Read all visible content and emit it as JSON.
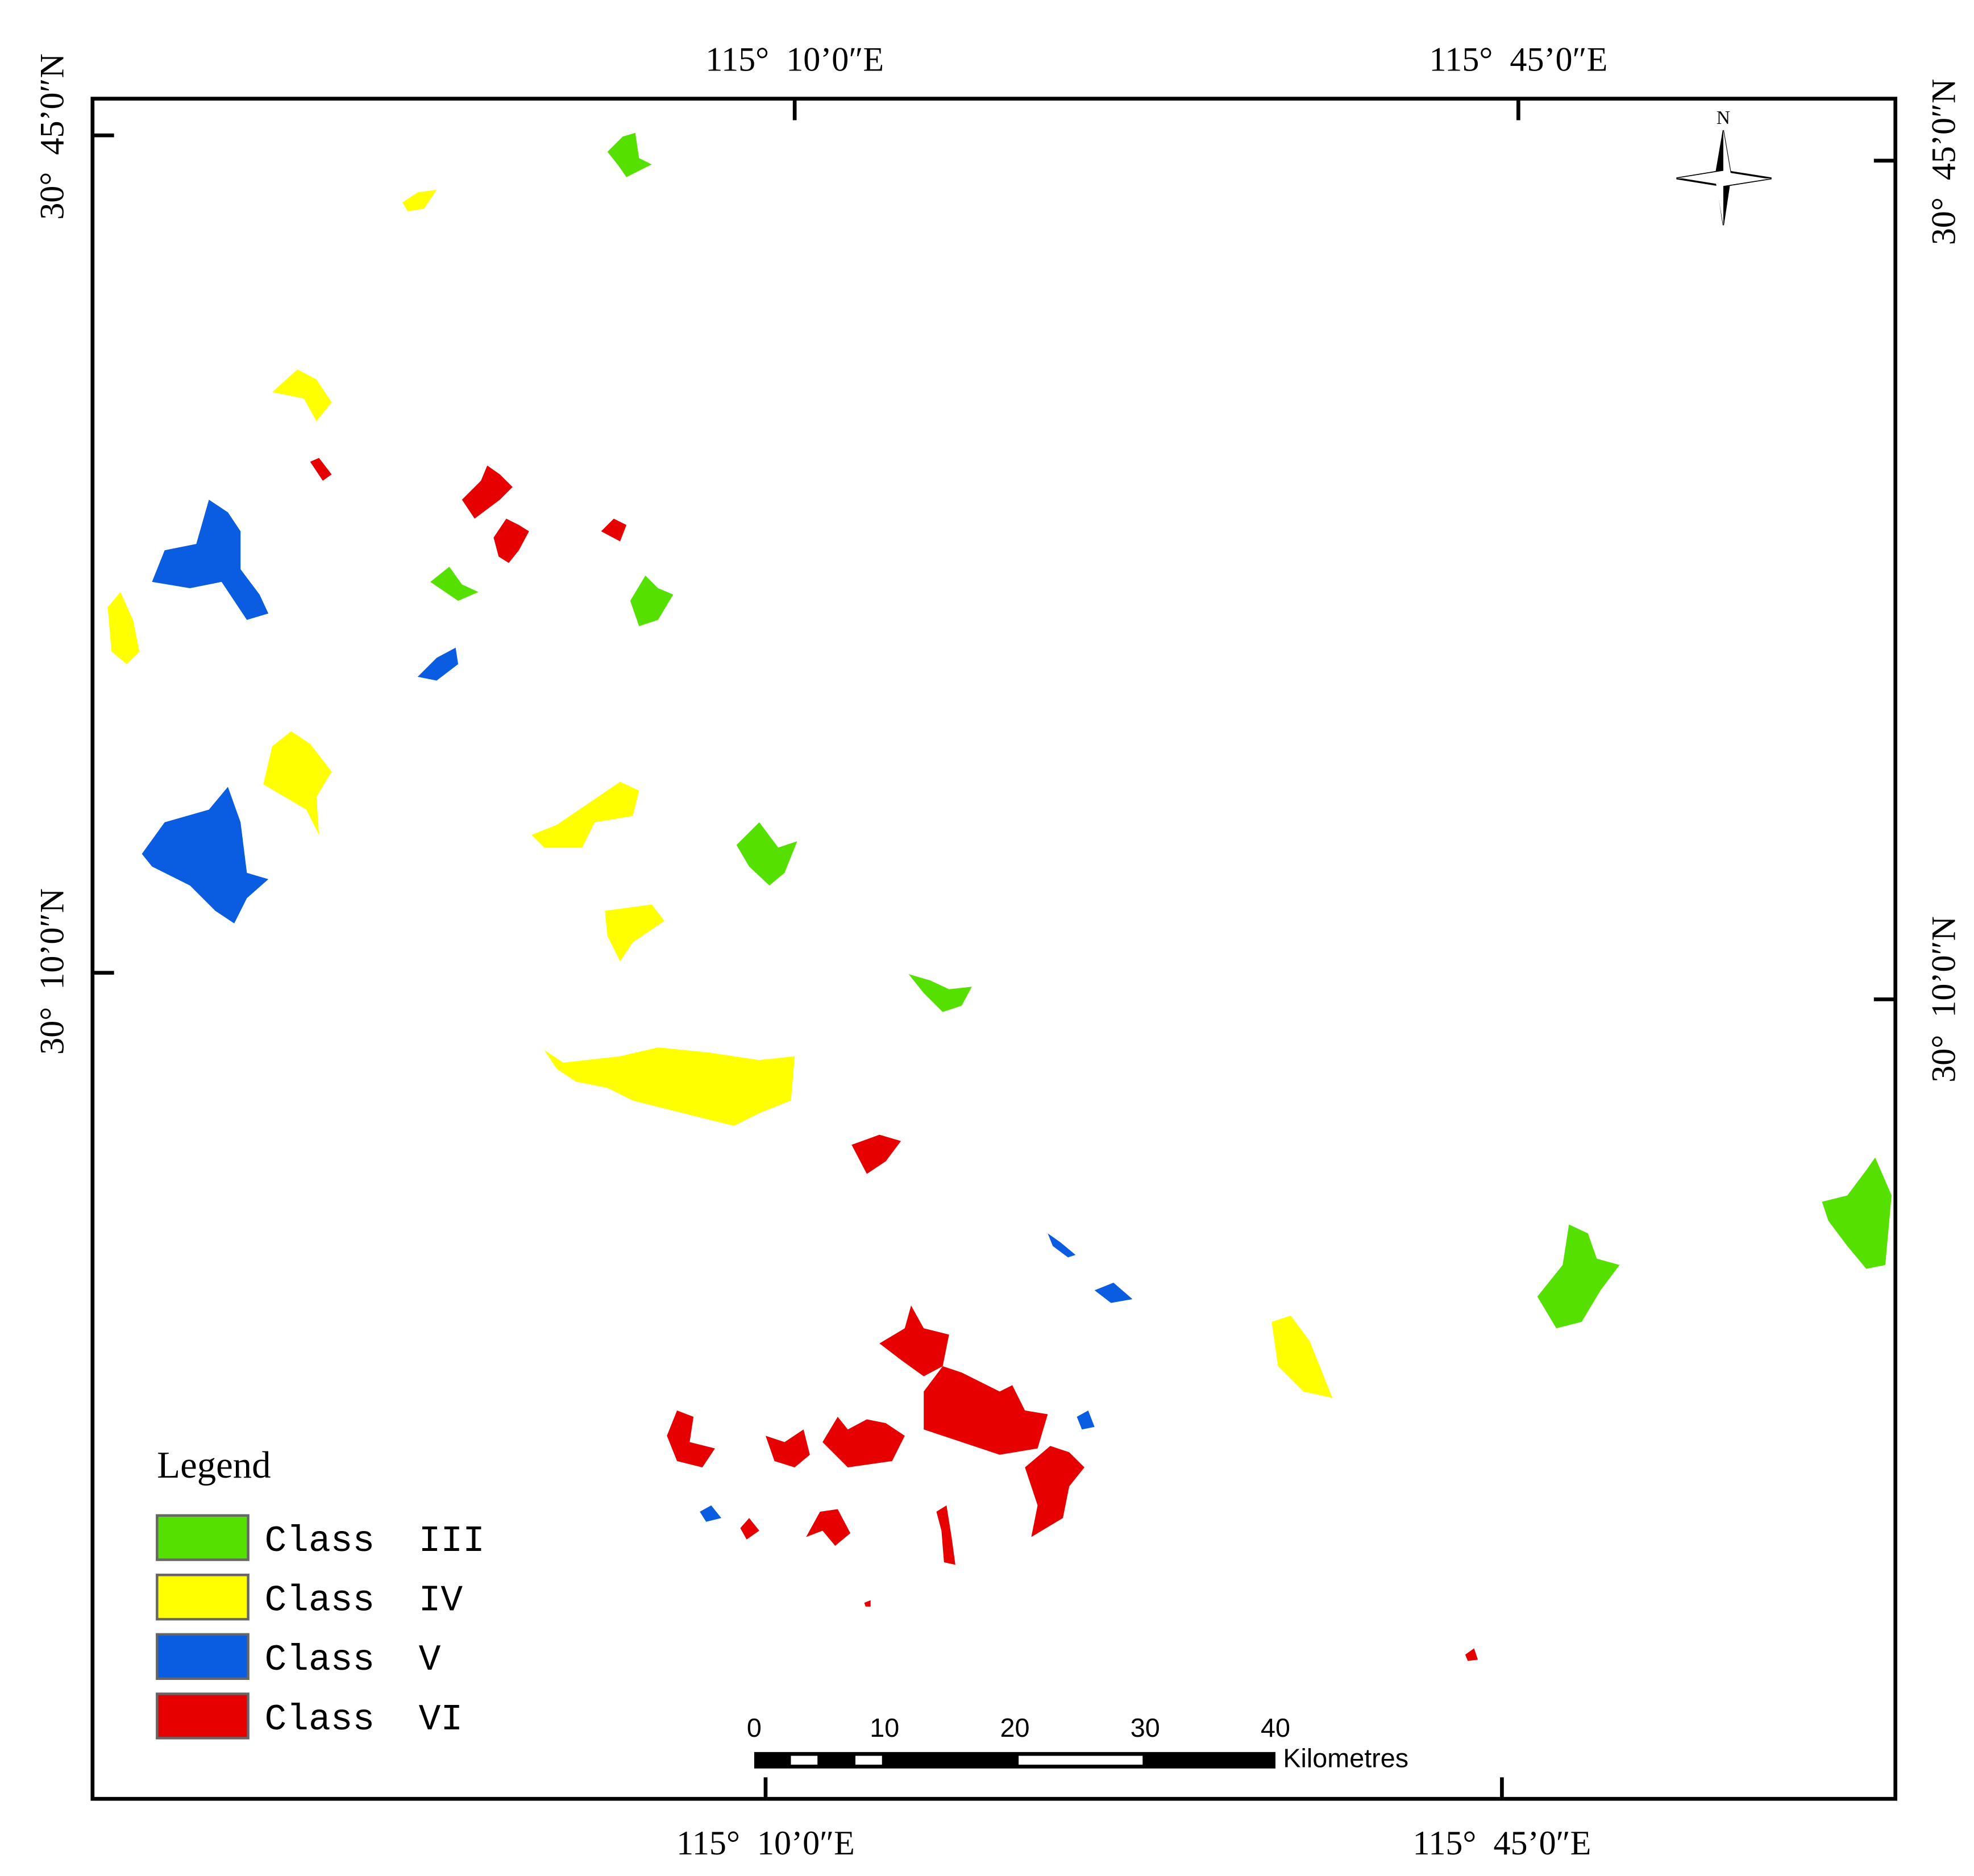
{
  "map": {
    "frame": {
      "top_labels": [
        "115°  10’0″E",
        "115°  45’0″E"
      ],
      "bottom_labels": [
        "115°  10’0″E",
        "115°  45’0″E"
      ],
      "left_labels": [
        "30°  45’0″N",
        "30°  10’0″N"
      ],
      "right_labels": [
        "30°  45’0″N",
        "30°  10’0″N"
      ]
    },
    "north_arrow": "N",
    "legend": {
      "title": "Legend",
      "items": [
        {
          "label": "Class  III",
          "color": "#55e000"
        },
        {
          "label": "Class  IV",
          "color": "#ffff00"
        },
        {
          "label": "Class  V",
          "color": "#0a5ce0"
        },
        {
          "label": "Class  VI",
          "color": "#e60000"
        }
      ]
    },
    "scale_bar": {
      "labels": [
        "0",
        "10",
        "20",
        "30",
        "40"
      ],
      "unit": "Kilometres"
    }
  }
}
